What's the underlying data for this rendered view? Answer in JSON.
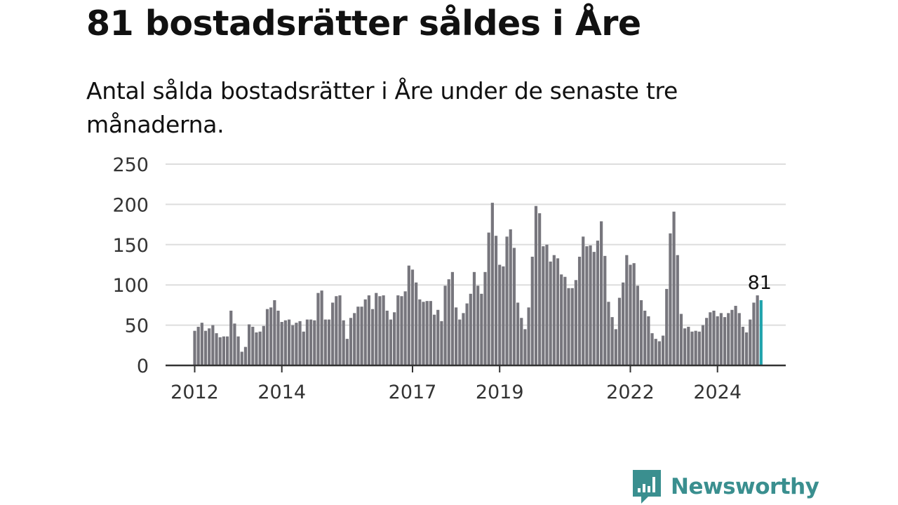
{
  "header": {
    "title": "81 bostadsrätter såldes i Åre",
    "subtitle": "Antal sålda bostadsrätter i Åre under de senaste tre månaderna."
  },
  "brand": {
    "name": "Newsworthy",
    "icon": "newsworthy-logo-icon",
    "color": "#3a8f8f"
  },
  "colors": {
    "bar": "#77767d",
    "highlight": "#20a3ac",
    "grid": "#dddddd",
    "axis": "#333333"
  },
  "chart_data": {
    "type": "bar",
    "title": "",
    "xlabel": "",
    "ylabel": "",
    "ylim": [
      0,
      250
    ],
    "yticks": [
      0,
      50,
      100,
      150,
      200,
      250
    ],
    "start": "2012-01",
    "xtick_labels": [
      {
        "label": "2012",
        "at": "2012-01"
      },
      {
        "label": "2014",
        "at": "2014-01"
      },
      {
        "label": "2017",
        "at": "2017-01"
      },
      {
        "label": "2019",
        "at": "2019-01"
      },
      {
        "label": "2022",
        "at": "2022-01"
      },
      {
        "label": "2024",
        "at": "2024-01"
      }
    ],
    "values": [
      43,
      48,
      53,
      43,
      46,
      50,
      40,
      35,
      36,
      36,
      68,
      52,
      36,
      17,
      23,
      51,
      48,
      41,
      42,
      49,
      70,
      72,
      81,
      68,
      54,
      56,
      57,
      50,
      53,
      55,
      42,
      57,
      57,
      56,
      90,
      93,
      57,
      57,
      78,
      86,
      87,
      56,
      33,
      59,
      65,
      73,
      73,
      82,
      87,
      70,
      90,
      86,
      87,
      68,
      57,
      66,
      87,
      86,
      92,
      124,
      119,
      103,
      82,
      79,
      80,
      80,
      63,
      69,
      55,
      99,
      107,
      116,
      72,
      57,
      65,
      77,
      89,
      116,
      99,
      89,
      116,
      165,
      202,
      161,
      125,
      123,
      160,
      169,
      146,
      78,
      59,
      45,
      72,
      135,
      198,
      189,
      148,
      150,
      129,
      137,
      133,
      113,
      110,
      96,
      96,
      106,
      135,
      160,
      148,
      149,
      141,
      155,
      179,
      136,
      79,
      60,
      45,
      84,
      103,
      137,
      125,
      127,
      99,
      81,
      68,
      61,
      40,
      33,
      30,
      37,
      95,
      164,
      191,
      137,
      64,
      46,
      48,
      42,
      43,
      42,
      50,
      59,
      66,
      68,
      61,
      65,
      60,
      65,
      69,
      74,
      65,
      48,
      41,
      57,
      78,
      87,
      81
    ],
    "highlight_last": true,
    "last_value_label": "81",
    "grid": true,
    "legend": "none"
  }
}
